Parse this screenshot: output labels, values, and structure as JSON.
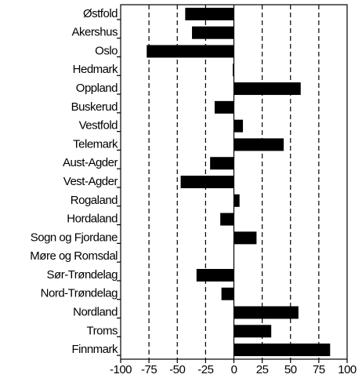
{
  "chart_data": {
    "type": "bar",
    "orientation": "horizontal",
    "categories": [
      "Østfold",
      "Akershus",
      "Oslo",
      "Hedmark",
      "Oppland",
      "Buskerud",
      "Vestfold",
      "Telemark",
      "Aust-Agder",
      "Vest-Agder",
      "Rogaland",
      "Hordaland",
      "Sogn og Fjordane",
      "Møre og Romsdal",
      "Sør-Trøndelag",
      "Nord-Trøndelag",
      "Nordland",
      "Troms",
      "Finnmark"
    ],
    "values": [
      -43,
      -37,
      -77,
      -1,
      59,
      -17,
      8,
      44,
      -21,
      -47,
      5,
      -12,
      20,
      0,
      -33,
      -11,
      57,
      33,
      85
    ],
    "color": "#000000",
    "xlim": [
      -100,
      100
    ],
    "xticks": [
      -100,
      -75,
      -50,
      -25,
      0,
      25,
      50,
      75,
      100
    ],
    "grid": true
  }
}
